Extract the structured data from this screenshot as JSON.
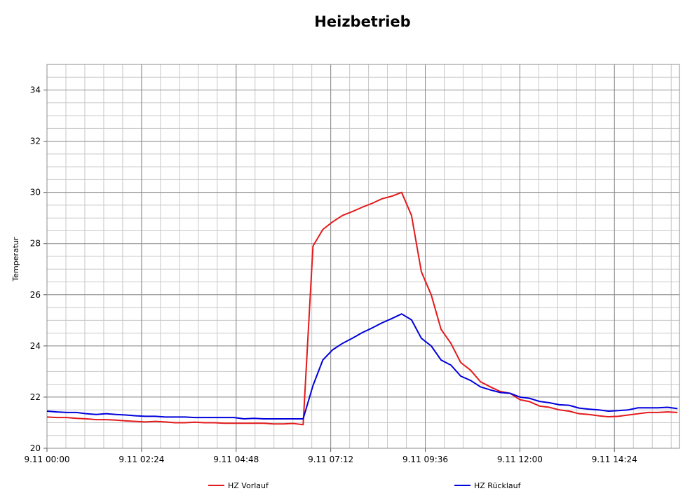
{
  "chart_data": {
    "type": "line",
    "title": "Heizbetrieb",
    "y_label": "Temperatur",
    "x": [
      0,
      15,
      30,
      45,
      60,
      75,
      90,
      105,
      120,
      135,
      150,
      165,
      180,
      195,
      210,
      225,
      240,
      255,
      270,
      285,
      300,
      315,
      330,
      345,
      360,
      375,
      390,
      405,
      420,
      435,
      450,
      465,
      480,
      495,
      510,
      525,
      540,
      555,
      570,
      585,
      600,
      615,
      630,
      645,
      660,
      675,
      690,
      705,
      720,
      735,
      750,
      765,
      780,
      795,
      810,
      825,
      840,
      855,
      870,
      885,
      900,
      915,
      930,
      945,
      960
    ],
    "series": [
      {
        "name": "HZ Vorlauf",
        "color": "#e31a1c",
        "values": [
          21.22,
          21.2,
          21.2,
          21.17,
          21.15,
          21.12,
          21.12,
          21.1,
          21.07,
          21.05,
          21.03,
          21.05,
          21.03,
          21.0,
          21.0,
          21.02,
          21.0,
          21.0,
          20.98,
          20.98,
          20.98,
          20.98,
          20.98,
          20.95,
          20.95,
          20.97,
          20.92,
          27.9,
          28.55,
          28.85,
          29.1,
          29.25,
          29.42,
          29.57,
          29.75,
          29.85,
          30.0,
          29.1,
          26.9,
          26.0,
          24.65,
          24.1,
          23.35,
          23.05,
          22.6,
          22.4,
          22.22,
          22.15,
          21.9,
          21.82,
          21.65,
          21.6,
          21.5,
          21.45,
          21.35,
          21.32,
          21.27,
          21.23,
          21.25,
          21.3,
          21.35,
          21.4,
          21.4,
          21.42,
          21.4
        ]
      },
      {
        "name": "HZ Rücklauf",
        "color": "#0000dd",
        "values": [
          21.45,
          21.42,
          21.4,
          21.4,
          21.35,
          21.32,
          21.35,
          21.32,
          21.3,
          21.27,
          21.25,
          21.25,
          21.22,
          21.22,
          21.22,
          21.2,
          21.2,
          21.2,
          21.2,
          21.2,
          21.15,
          21.17,
          21.15,
          21.15,
          21.15,
          21.15,
          21.15,
          22.45,
          23.45,
          23.85,
          24.1,
          24.3,
          24.52,
          24.7,
          24.9,
          25.07,
          25.25,
          25.02,
          24.3,
          24.0,
          23.45,
          23.25,
          22.82,
          22.65,
          22.4,
          22.28,
          22.18,
          22.15,
          22.0,
          21.95,
          21.83,
          21.78,
          21.7,
          21.68,
          21.57,
          21.53,
          21.5,
          21.45,
          21.47,
          21.5,
          21.58,
          21.58,
          21.58,
          21.6,
          21.55
        ]
      }
    ],
    "xlim": [
      0,
      963
    ],
    "xticks": [
      {
        "value": 0,
        "label": "9.11 00:00"
      },
      {
        "value": 144,
        "label": "9.11 02:24"
      },
      {
        "value": 288,
        "label": "9.11 04:48"
      },
      {
        "value": 432,
        "label": "9.11 07:12"
      },
      {
        "value": 576,
        "label": "9.11 09:36"
      },
      {
        "value": 720,
        "label": "9.11 12:00"
      },
      {
        "value": 864,
        "label": "9.11 14:24"
      }
    ],
    "ylim": [
      20,
      35
    ],
    "yticks": [
      20,
      22,
      24,
      26,
      28,
      30,
      32,
      34
    ],
    "grid": true,
    "legend": "bottom"
  }
}
